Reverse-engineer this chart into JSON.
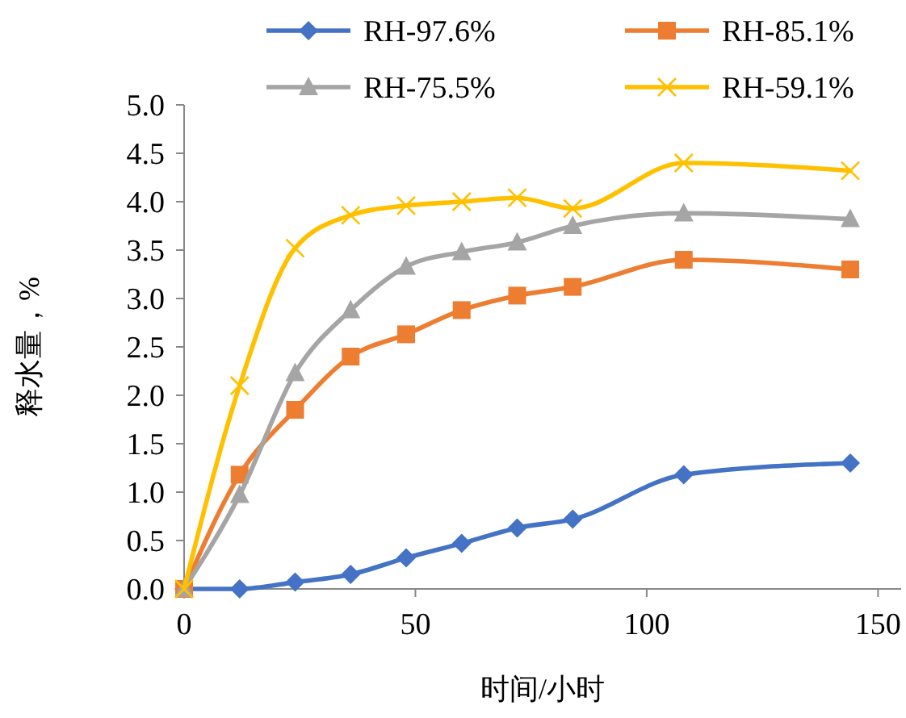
{
  "chart_data": {
    "type": "line",
    "xlabel": "时间/小时",
    "ylabel": "释水量，%",
    "x": [
      0,
      12,
      24,
      36,
      48,
      60,
      72,
      84,
      108,
      144
    ],
    "series": [
      {
        "name": "RH-97.6%",
        "color": "#4472c4",
        "marker": "diamond",
        "values": [
          0,
          0,
          0.07,
          0.15,
          0.32,
          0.47,
          0.63,
          0.72,
          1.18,
          1.3
        ]
      },
      {
        "name": "RH-85.1%",
        "color": "#ed7d31",
        "marker": "square",
        "values": [
          0,
          1.18,
          1.85,
          2.4,
          2.63,
          2.88,
          3.03,
          3.12,
          3.4,
          3.3
        ]
      },
      {
        "name": "RH-75.5%",
        "color": "#a5a5a5",
        "marker": "triangle",
        "values": [
          0,
          0.97,
          2.23,
          2.88,
          3.33,
          3.48,
          3.58,
          3.75,
          3.88,
          3.82
        ]
      },
      {
        "name": "RH-59.1%",
        "color": "#ffc000",
        "marker": "cross",
        "values": [
          0,
          2.1,
          3.52,
          3.86,
          3.96,
          4.0,
          4.04,
          3.93,
          4.4,
          4.32
        ]
      }
    ],
    "xlim": [
      0,
      155
    ],
    "xticks": [
      0,
      50,
      100,
      150
    ],
    "ylim": [
      0,
      5
    ],
    "yticks": [
      {
        "value": 0,
        "label": "0.0"
      },
      {
        "value": 0.5,
        "label": "0.5"
      },
      {
        "value": 1,
        "label": "1.0"
      },
      {
        "value": 1.5,
        "label": "1.5"
      },
      {
        "value": 2,
        "label": "2.0"
      },
      {
        "value": 2.5,
        "label": "2.5"
      },
      {
        "value": 3,
        "label": "3.0"
      },
      {
        "value": 3.5,
        "label": "3.5"
      },
      {
        "value": 4,
        "label": "4.0"
      },
      {
        "value": 4.5,
        "label": "4.5"
      },
      {
        "value": 5,
        "label": "5.0"
      }
    ],
    "grid": false,
    "legend": "top",
    "line_style": "solid"
  }
}
